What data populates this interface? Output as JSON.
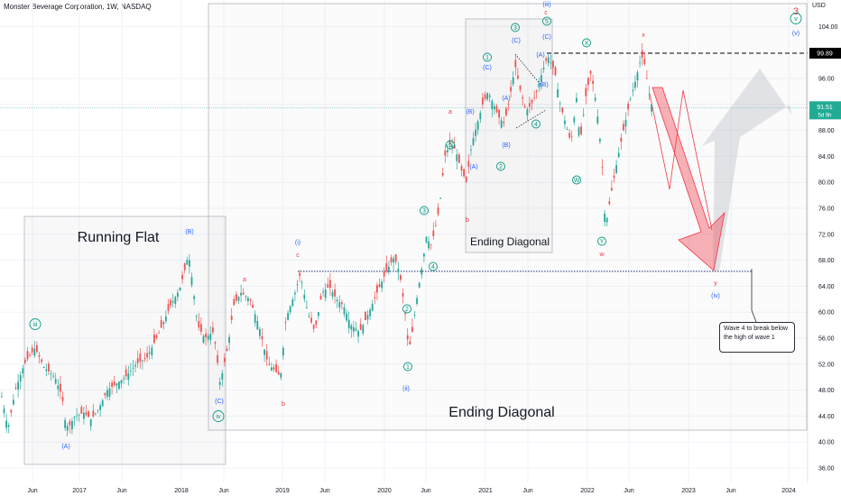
{
  "header": {
    "symbol_line": "Monster Beverage Corporation, 1W, NASDAQ",
    "currency": "USD"
  },
  "colors": {
    "bull": "#26a69a",
    "bear": "#ef5350",
    "wave_green": "#089981",
    "wave_blue": "#2962ff",
    "wave_red": "#f23645",
    "grid": "#f0f3fa",
    "box_border": "#b2b5be"
  },
  "chart_data": {
    "type": "candlestick",
    "title": "Monster Beverage Corporation, 1W, NASDAQ",
    "ylabel": "USD",
    "ylim": [
      34.5,
      107
    ],
    "y_ticks": [
      36,
      40,
      44,
      48,
      52,
      56,
      60,
      64,
      68,
      72,
      76,
      80,
      84,
      88,
      92,
      96,
      104
    ],
    "x_ticks": [
      "Jun",
      "2017",
      "Jun",
      "2018",
      "Jun",
      "2019",
      "Jun",
      "2020",
      "Jun",
      "2021",
      "Jun",
      "2022",
      "Jun",
      "2023",
      "Jun",
      "2024"
    ],
    "price_labels": {
      "level": "99.89",
      "current": "91.51",
      "countdown": "5d 9h"
    },
    "key_levels": {
      "dashed_resistance": 99.89,
      "dotted_wave1_high": 66.3,
      "current_price": 91.51
    },
    "price_path": [
      [
        1,
        47
      ],
      [
        8,
        42
      ],
      [
        16,
        48
      ],
      [
        26,
        52
      ],
      [
        38,
        54.5
      ],
      [
        48,
        51.5
      ],
      [
        60,
        50
      ],
      [
        68,
        47
      ],
      [
        72,
        42.5
      ],
      [
        76,
        42.5
      ],
      [
        82,
        44
      ],
      [
        92,
        44.5
      ],
      [
        100,
        43.5
      ],
      [
        108,
        45
      ],
      [
        118,
        48
      ],
      [
        128,
        49
      ],
      [
        138,
        50
      ],
      [
        150,
        52
      ],
      [
        162,
        53
      ],
      [
        176,
        57
      ],
      [
        188,
        61
      ],
      [
        198,
        63.5
      ],
      [
        203,
        66
      ],
      [
        208,
        69
      ],
      [
        212,
        65
      ],
      [
        218,
        58
      ],
      [
        226,
        56
      ],
      [
        236,
        57
      ],
      [
        243,
        49
      ],
      [
        252,
        55
      ],
      [
        258,
        61
      ],
      [
        266,
        63
      ],
      [
        276,
        62
      ],
      [
        286,
        58
      ],
      [
        296,
        52
      ],
      [
        304,
        51
      ],
      [
        310,
        50
      ],
      [
        316,
        59
      ],
      [
        326,
        63
      ],
      [
        332,
        66
      ],
      [
        340,
        60
      ],
      [
        348,
        57
      ],
      [
        356,
        63
      ],
      [
        364,
        64
      ],
      [
        372,
        62
      ],
      [
        380,
        61
      ],
      [
        388,
        58
      ],
      [
        398,
        57
      ],
      [
        408,
        60
      ],
      [
        420,
        64
      ],
      [
        428,
        66.5
      ],
      [
        436,
        68.5
      ],
      [
        442,
        66
      ],
      [
        448,
        60
      ],
      [
        452,
        54
      ],
      [
        456,
        57
      ],
      [
        462,
        63
      ],
      [
        468,
        68
      ],
      [
        472,
        72
      ],
      [
        476,
        70
      ],
      [
        480,
        72
      ],
      [
        486,
        76
      ],
      [
        492,
        84
      ],
      [
        498,
        86
      ],
      [
        504,
        85
      ],
      [
        510,
        82
      ],
      [
        516,
        80
      ],
      [
        522,
        86
      ],
      [
        528,
        89
      ],
      [
        534,
        92
      ],
      [
        540,
        94
      ],
      [
        546,
        92
      ],
      [
        552,
        90
      ],
      [
        558,
        89
      ],
      [
        564,
        93
      ],
      [
        570,
        98
      ],
      [
        576,
        94
      ],
      [
        582,
        91
      ],
      [
        588,
        92
      ],
      [
        594,
        94
      ],
      [
        600,
        97
      ],
      [
        606,
        99.5
      ],
      [
        614,
        97
      ],
      [
        620,
        92
      ],
      [
        626,
        89
      ],
      [
        632,
        86
      ],
      [
        638,
        93
      ],
      [
        642,
        86
      ],
      [
        648,
        93
      ],
      [
        654,
        97
      ],
      [
        660,
        92
      ],
      [
        666,
        84
      ],
      [
        670,
        73
      ],
      [
        676,
        78
      ],
      [
        684,
        84
      ],
      [
        690,
        88
      ],
      [
        698,
        93
      ],
      [
        704,
        96
      ],
      [
        710,
        99.5
      ],
      [
        714,
        98
      ],
      [
        718,
        94
      ],
      [
        722,
        91.51
      ]
    ],
    "annotations": {
      "box_titles": [
        "Running Flat",
        "Ending Diagonal",
        "Ending Diagonal"
      ],
      "note": "Wave 4 to break below the high of wave 1",
      "waves": [
        {
          "t": "iii",
          "c": "green",
          "circle": true
        },
        {
          "t": "(A)",
          "c": "blue"
        },
        {
          "t": "(B)",
          "c": "blue"
        },
        {
          "t": "(C)",
          "c": "blue"
        },
        {
          "t": "iv",
          "c": "green",
          "circle": true
        },
        {
          "t": "a",
          "c": "red"
        },
        {
          "t": "b",
          "c": "red"
        },
        {
          "t": "c",
          "c": "red"
        },
        {
          "t": "(i)",
          "c": "blue"
        },
        {
          "t": "(ii)",
          "c": "blue"
        },
        {
          "t": "1",
          "c": "green",
          "circle": true
        },
        {
          "t": "2",
          "c": "green",
          "circle": true
        },
        {
          "t": "3",
          "c": "green",
          "circle": true
        },
        {
          "t": "4",
          "c": "green",
          "circle": true
        },
        {
          "t": "5",
          "c": "green",
          "circle": true
        },
        {
          "t": "a",
          "c": "red"
        },
        {
          "t": "b",
          "c": "red"
        },
        {
          "t": "(A)",
          "c": "blue"
        },
        {
          "t": "(B)",
          "c": "blue"
        },
        {
          "t": "(C)",
          "c": "blue"
        },
        {
          "t": "(A)",
          "c": "blue"
        },
        {
          "t": "(B)",
          "c": "blue"
        },
        {
          "t": "1",
          "c": "green",
          "circle": true
        },
        {
          "t": "2",
          "c": "green",
          "circle": true
        },
        {
          "t": "3",
          "c": "green",
          "circle": true
        },
        {
          "t": "4",
          "c": "green",
          "circle": true
        },
        {
          "t": "5",
          "c": "green",
          "circle": true
        },
        {
          "t": "(C)",
          "c": "blue"
        },
        {
          "t": "(A)",
          "c": "blue"
        },
        {
          "t": "(B)",
          "c": "blue"
        },
        {
          "t": "(C)",
          "c": "blue"
        },
        {
          "t": "c",
          "c": "red"
        },
        {
          "t": "(iii)",
          "c": "blue"
        },
        {
          "t": "X",
          "c": "green",
          "circle": true
        },
        {
          "t": "W",
          "c": "green",
          "circle": true
        },
        {
          "t": "Y",
          "c": "green",
          "circle": true
        },
        {
          "t": "w",
          "c": "red"
        },
        {
          "t": "x",
          "c": "red"
        },
        {
          "t": "y",
          "c": "red"
        },
        {
          "t": "(iv)",
          "c": "blue"
        },
        {
          "t": "3",
          "c": "red"
        },
        {
          "t": "v",
          "c": "green",
          "circle": true
        },
        {
          "t": "(v)",
          "c": "blue"
        }
      ]
    }
  }
}
